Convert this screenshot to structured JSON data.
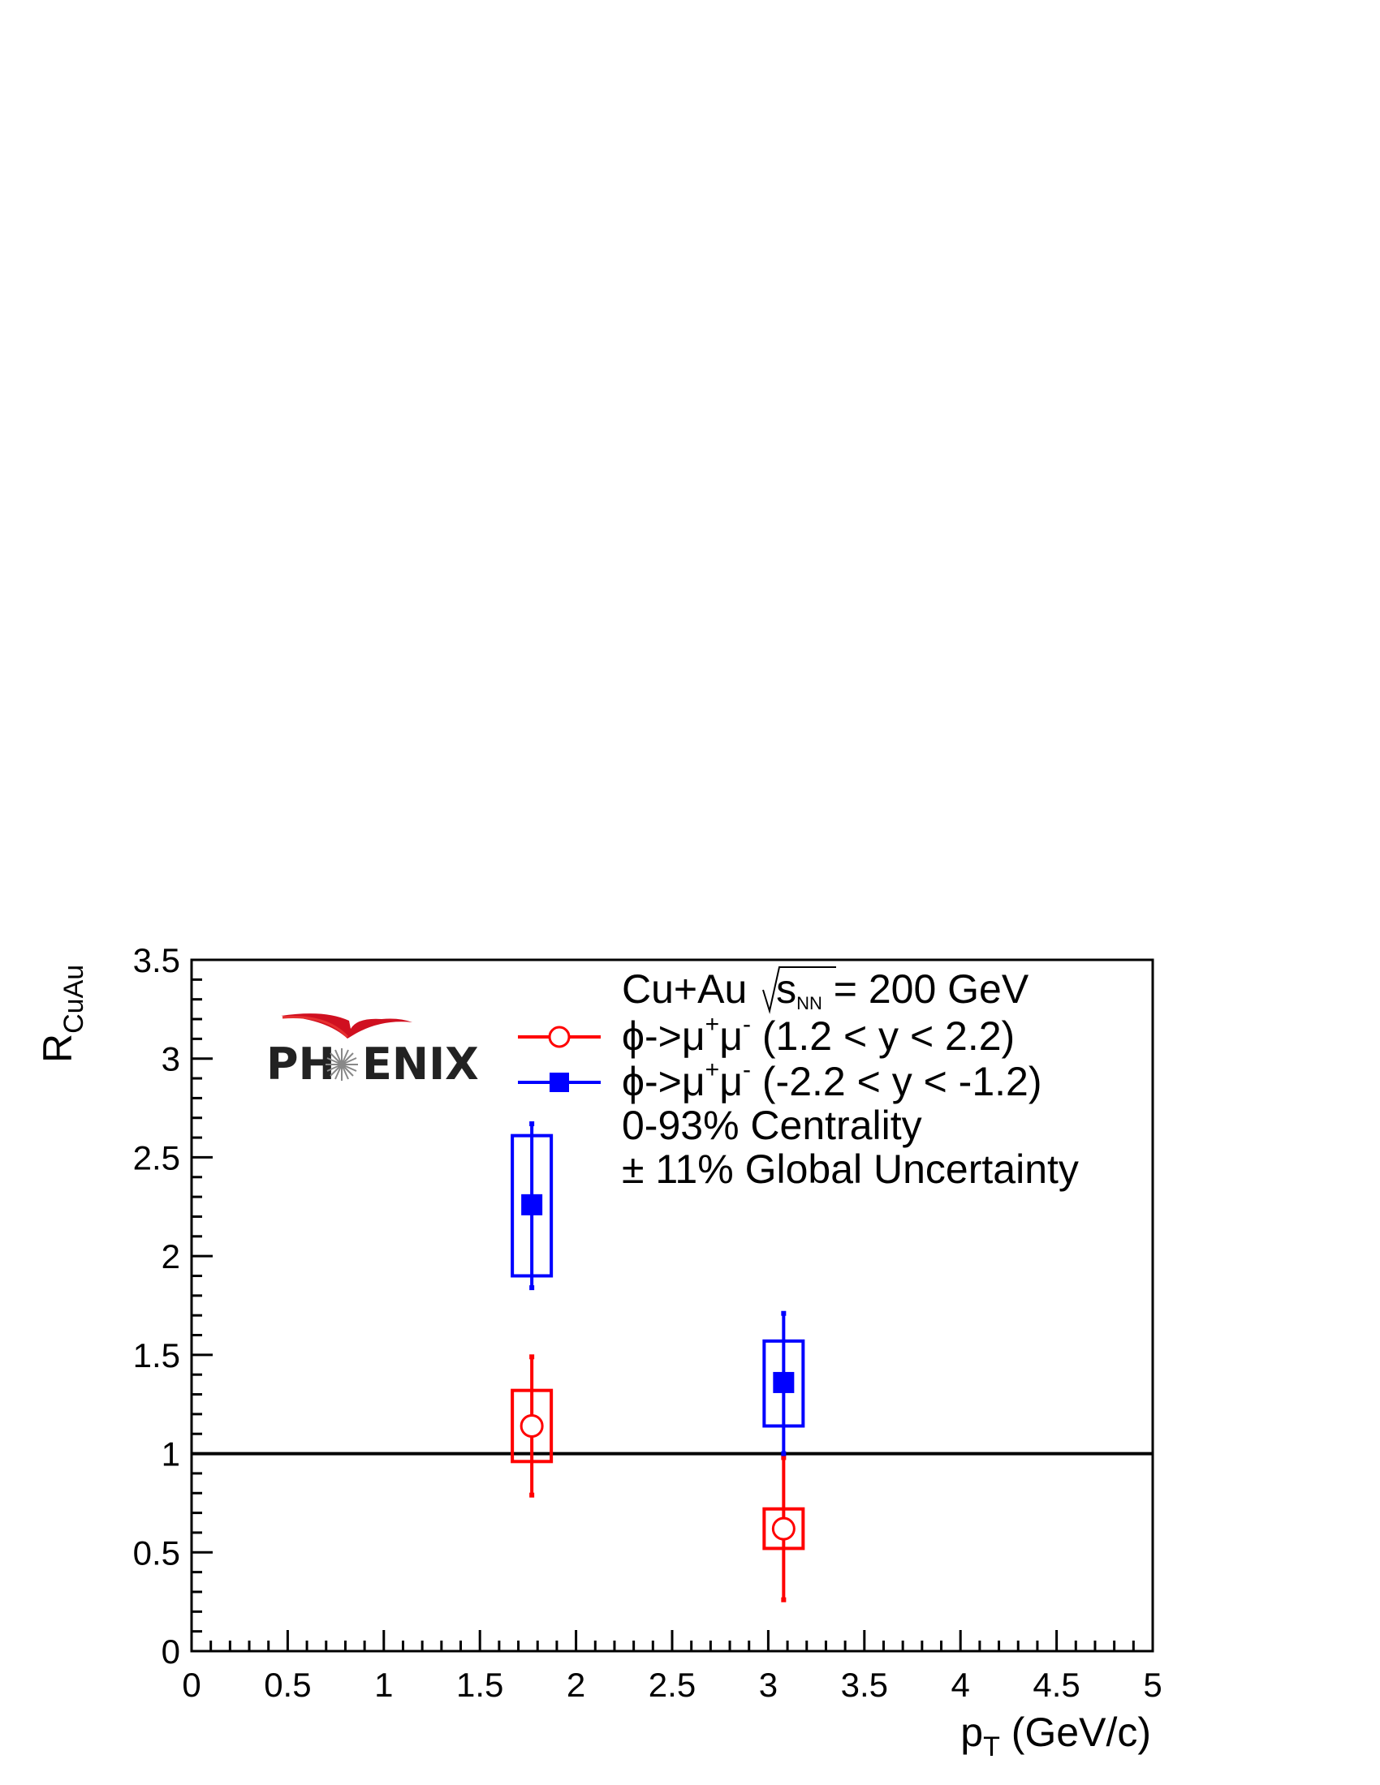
{
  "chart_data": {
    "type": "scatter",
    "xlabel": "p",
    "xlabel_sub": "T",
    "xlabel_unit": "(GeV/c)",
    "ylabel": "R",
    "ylabel_sub": "CuAu",
    "xlim": [
      0,
      5
    ],
    "ylim": [
      0,
      3.5
    ],
    "x_ticks": [
      "0",
      "0.5",
      "1",
      "1.5",
      "2",
      "2.5",
      "3",
      "3.5",
      "4",
      "4.5",
      "5"
    ],
    "y_ticks": [
      "0",
      "0.5",
      "1",
      "1.5",
      "2",
      "2.5",
      "3",
      "3.5"
    ],
    "reference_line": {
      "y": 1,
      "color": "#000000"
    },
    "grid": false,
    "legend_position": "top-right",
    "collision": {
      "prefix": "Cu+Au ",
      "sqrt": "s",
      "sqrt_sub": "NN",
      "suffix": " = 200 GeV"
    },
    "series": [
      {
        "label_main": "ϕ->μ",
        "label_sup1": "+",
        "label_mid": "μ",
        "label_sup2": "-",
        "label_range": " (1.2 < y < 2.2)",
        "color": "#ff0000",
        "marker": "open-circle",
        "points": [
          {
            "x": 1.77,
            "y": 1.14,
            "stat_low": 0.79,
            "stat_high": 1.49,
            "sys_low": 0.96,
            "sys_high": 1.32
          },
          {
            "x": 3.08,
            "y": 0.62,
            "stat_low": 0.26,
            "stat_high": 0.98,
            "sys_low": 0.52,
            "sys_high": 0.72
          }
        ]
      },
      {
        "label_main": "ϕ->μ",
        "label_sup1": "+",
        "label_mid": "μ",
        "label_sup2": "-",
        "label_range": " (-2.2 < y < -1.2)",
        "color": "#0000ff",
        "marker": "filled-square",
        "points": [
          {
            "x": 1.77,
            "y": 2.26,
            "stat_low": 1.84,
            "stat_high": 2.67,
            "sys_low": 1.9,
            "sys_high": 2.61
          },
          {
            "x": 3.08,
            "y": 1.36,
            "stat_low": 1.0,
            "stat_high": 1.71,
            "sys_low": 1.14,
            "sys_high": 1.57
          }
        ]
      }
    ],
    "annotations": [
      "0-93% Centrality",
      "± 11% Global Uncertainty"
    ],
    "logo": "PHENIX"
  }
}
